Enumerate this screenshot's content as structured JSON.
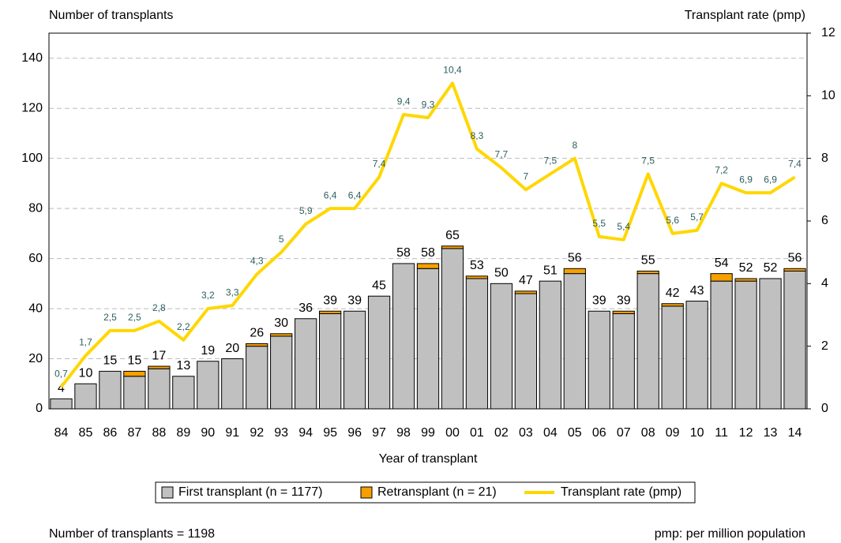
{
  "chart_data": {
    "type": "bar_line",
    "y_title": "Number of transplants",
    "y2_title": "Transplant rate (pmp)",
    "x_title": "Year of transplant",
    "categories": [
      "84",
      "85",
      "86",
      "87",
      "88",
      "89",
      "90",
      "91",
      "92",
      "93",
      "94",
      "95",
      "96",
      "97",
      "98",
      "99",
      "00",
      "01",
      "02",
      "03",
      "04",
      "05",
      "06",
      "07",
      "08",
      "09",
      "10",
      "11",
      "12",
      "13",
      "14"
    ],
    "series": [
      {
        "name": "First transplant (n = 1177)",
        "color": "#c0c0c0",
        "type": "bar",
        "values": [
          4,
          10,
          15,
          13,
          16,
          13,
          19,
          20,
          25,
          29,
          36,
          38,
          39,
          45,
          58,
          56,
          64,
          52,
          50,
          46,
          51,
          54,
          39,
          38,
          54,
          41,
          43,
          51,
          51,
          52,
          55
        ]
      },
      {
        "name": "Retransplant (n = 21)",
        "color": "#f5a000",
        "type": "bar",
        "values": [
          0,
          0,
          0,
          2,
          1,
          0,
          0,
          0,
          1,
          1,
          0,
          1,
          0,
          0,
          0,
          2,
          1,
          1,
          0,
          1,
          0,
          2,
          0,
          1,
          1,
          1,
          0,
          3,
          1,
          0,
          1
        ]
      },
      {
        "name": "Transplant rate (pmp)",
        "color": "#ffd700",
        "type": "line",
        "axis": "y2",
        "values": [
          0.7,
          1.7,
          2.5,
          2.5,
          2.8,
          2.2,
          3.2,
          3.3,
          4.3,
          5,
          5.9,
          6.4,
          6.4,
          7.4,
          9.4,
          9.3,
          10.4,
          8.3,
          7.7,
          7,
          7.5,
          8,
          5.5,
          5.4,
          7.5,
          5.6,
          5.7,
          7.2,
          6.9,
          6.9,
          7.4
        ],
        "value_labels": [
          "0,7",
          "1,7",
          "2,5",
          "2,5",
          "2,8",
          "2,2",
          "3,2",
          "3,3",
          "4,3",
          "5",
          "5,9",
          "6,4",
          "6,4",
          "7,4",
          "9,4",
          "9,3",
          "10,4",
          "8,3",
          "7,7",
          "7",
          "7,5",
          "8",
          "5,5",
          "5,4",
          "7,5",
          "5,6",
          "5,7",
          "7,2",
          "6,9",
          "6,9",
          "7,4"
        ]
      }
    ],
    "totals": [
      4,
      10,
      15,
      15,
      17,
      13,
      19,
      20,
      26,
      30,
      36,
      39,
      39,
      45,
      58,
      58,
      65,
      53,
      50,
      47,
      51,
      56,
      39,
      39,
      55,
      42,
      43,
      54,
      52,
      52,
      56
    ],
    "ylim": [
      0,
      150
    ],
    "yticks": [
      0,
      20,
      40,
      60,
      80,
      100,
      120,
      140
    ],
    "y2lim": [
      0,
      12
    ],
    "y2ticks": [
      0,
      2,
      4,
      6,
      8,
      10,
      12
    ],
    "grid": true,
    "footnote_left": "Number of transplants = 1198",
    "footnote_right": "pmp: per million population"
  }
}
